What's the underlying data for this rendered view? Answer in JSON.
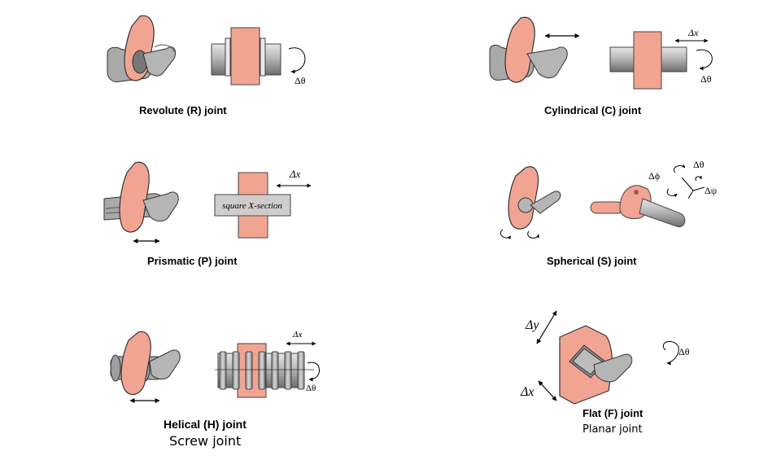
{
  "joints": {
    "revolute": {
      "label": "Revolute (R) joint"
    },
    "cylindrical": {
      "label": "Cylindrical (C) joint"
    },
    "prismatic": {
      "label": "Prismatic (P) joint",
      "section_label": "square X-section"
    },
    "spherical": {
      "label": "Spherical (S) joint"
    },
    "helical": {
      "label": "Helical (H) joint",
      "alt_label": "Screw joint"
    },
    "flat": {
      "label": "Flat (F) joint",
      "alt_label": "Planar joint"
    }
  },
  "symbols": {
    "dtheta": "Δθ",
    "dx": "Δx",
    "dy": "Δy",
    "dphi": "Δϕ",
    "dpsi": "Δψ"
  },
  "colors": {
    "salmon": "#f2a493",
    "salmon_dark": "#9a5a50",
    "gray": "#a7a7a7",
    "gray_dark": "#555555"
  }
}
